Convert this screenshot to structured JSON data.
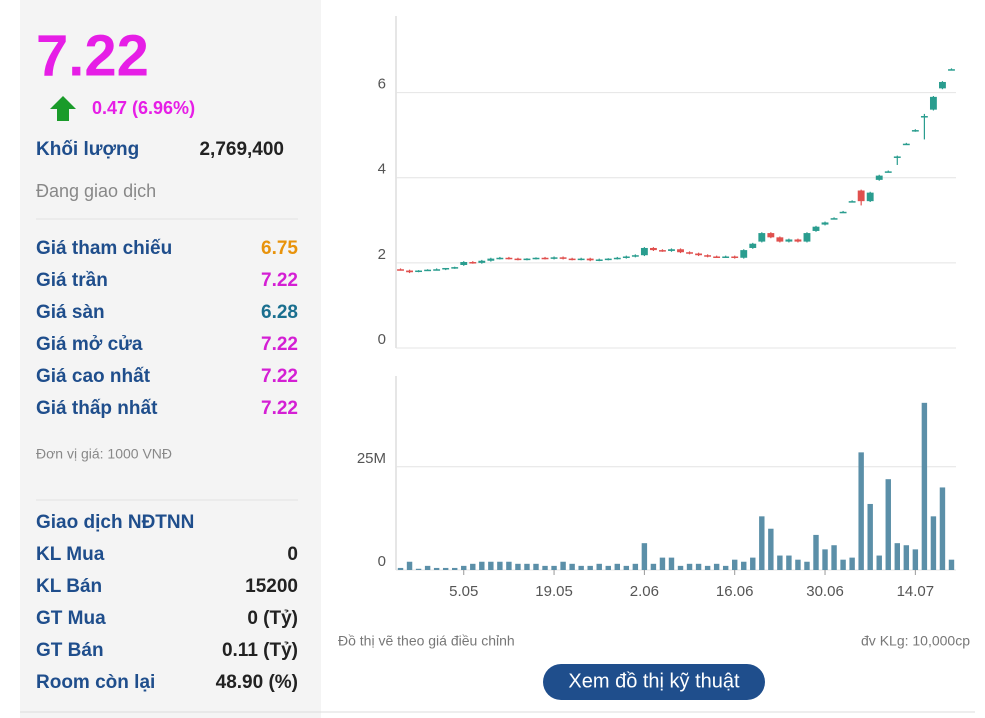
{
  "panel": {
    "price": "7.22",
    "change": "0.47 (6.96%)",
    "volume_label": "Khối lượng",
    "volume": "2,769,400",
    "status": "Đang giao dịch",
    "rows": [
      [
        "Giá tham chiếu",
        "6.75"
      ],
      [
        "Giá trần",
        "7.22"
      ],
      [
        "Giá sàn",
        "6.28"
      ],
      [
        "Giá mở cửa",
        "7.22"
      ],
      [
        "Giá cao nhất",
        "7.22"
      ],
      [
        "Giá thấp nhất",
        "7.22"
      ]
    ],
    "unit": "Đơn vị giá: 1000 VNĐ",
    "foreign_title": "Giao dịch NĐTNN",
    "foreign_rows": [
      [
        "KL Mua",
        "0"
      ],
      [
        "KL Bán",
        "15200"
      ],
      [
        "GT Mua",
        "0 (Tỷ)"
      ],
      [
        "GT Bán",
        "0.11 (Tỷ)"
      ],
      [
        "Room còn lại",
        "48.90 (%)"
      ]
    ]
  },
  "chart_data": [
    {
      "type": "candlestick",
      "up_color": "#2a9d8f",
      "down_color": "#e0504e",
      "ylim": [
        0,
        7.8
      ],
      "yticks": [
        0,
        2,
        4,
        6
      ],
      "grid": true,
      "open": [
        1.85,
        1.82,
        1.8,
        1.83,
        1.85,
        1.85,
        1.88,
        1.95,
        2.02,
        2,
        2.05,
        2.1,
        2.12,
        2.1,
        2.08,
        2.1,
        2.12,
        2.1,
        2.13,
        2.1,
        2.08,
        2.1,
        2.06,
        2.08,
        2.1,
        2.12,
        2.15,
        2.18,
        2.35,
        2.3,
        2.28,
        2.32,
        2.25,
        2.22,
        2.18,
        2.15,
        2.14,
        2.15,
        2.12,
        2.35,
        2.5,
        2.7,
        2.6,
        2.5,
        2.55,
        2.5,
        2.75,
        2.9,
        3.05,
        3.2,
        3.45,
        3.7,
        3.45,
        3.95,
        4.15,
        4.5,
        4.8,
        5.1,
        5.45,
        5.6,
        6.1,
        6.55
      ],
      "high": [
        1.87,
        1.84,
        1.83,
        1.85,
        1.87,
        1.88,
        1.91,
        2.04,
        2.04,
        2.07,
        2.12,
        2.14,
        2.14,
        2.12,
        2.11,
        2.13,
        2.14,
        2.15,
        2.15,
        2.12,
        2.12,
        2.12,
        2.1,
        2.11,
        2.14,
        2.17,
        2.2,
        2.37,
        2.37,
        2.32,
        2.34,
        2.34,
        2.27,
        2.24,
        2.2,
        2.17,
        2.17,
        2.17,
        2.32,
        2.47,
        2.72,
        2.72,
        2.62,
        2.57,
        2.57,
        2.72,
        2.87,
        2.97,
        3.07,
        3.22,
        3.47,
        3.72,
        3.67,
        4.07,
        4.17,
        4.52,
        4.82,
        5.14,
        5.5,
        5.92,
        6.27,
        6.57
      ],
      "low": [
        1.82,
        1.76,
        1.78,
        1.81,
        1.83,
        1.83,
        1.86,
        1.93,
        1.98,
        1.98,
        2.03,
        2.08,
        2.08,
        2.06,
        2.06,
        2.08,
        2.08,
        2.08,
        2.08,
        2.06,
        2.06,
        2.04,
        2.04,
        2.06,
        2.08,
        2.1,
        2.13,
        2.16,
        2.28,
        2.26,
        2.26,
        2.23,
        2.2,
        2.16,
        2.13,
        2.12,
        2.12,
        2.1,
        2.1,
        2.33,
        2.48,
        2.58,
        2.48,
        2.48,
        2.48,
        2.48,
        2.73,
        2.88,
        3.03,
        3.18,
        3.43,
        3.35,
        3.43,
        3.93,
        4.13,
        4.3,
        4.78,
        5.08,
        4.9,
        5.58,
        6.08,
        6.53
      ],
      "close": [
        1.82,
        1.78,
        1.82,
        1.84,
        1.85,
        1.88,
        1.9,
        2.02,
        2,
        2.05,
        2.1,
        2.12,
        2.1,
        2.08,
        2.1,
        2.12,
        2.1,
        2.13,
        2.1,
        2.08,
        2.1,
        2.06,
        2.08,
        2.1,
        2.12,
        2.15,
        2.18,
        2.35,
        2.3,
        2.28,
        2.32,
        2.25,
        2.22,
        2.18,
        2.15,
        2.14,
        2.15,
        2.12,
        2.3,
        2.45,
        2.7,
        2.6,
        2.5,
        2.55,
        2.5,
        2.7,
        2.85,
        2.95,
        3.05,
        3.2,
        3.45,
        3.45,
        3.65,
        4.05,
        4.15,
        4.5,
        4.8,
        5.12,
        5.45,
        5.9,
        6.25,
        6.55
      ],
      "note": "Đồ thị vẽ theo giá điều chỉnh"
    },
    {
      "type": "bar",
      "color": "#5b8fa8",
      "ylim": [
        0,
        47000000
      ],
      "yticks": [
        0,
        {
          "value": 25000000,
          "label": "25M"
        }
      ],
      "grid": true,
      "categories": [
        null,
        null,
        null,
        null,
        null,
        null,
        null,
        "5.05",
        null,
        null,
        null,
        null,
        null,
        null,
        null,
        null,
        null,
        "19.05",
        null,
        null,
        null,
        null,
        null,
        null,
        null,
        null,
        null,
        "2.06",
        null,
        null,
        null,
        null,
        null,
        null,
        null,
        null,
        null,
        "16.06",
        null,
        null,
        null,
        null,
        null,
        null,
        null,
        null,
        null,
        "30.06",
        null,
        null,
        null,
        null,
        null,
        null,
        null,
        null,
        null,
        "14.07",
        null,
        null,
        null,
        null
      ],
      "values": [
        500000,
        2000000,
        300000,
        1000000,
        500000,
        500000,
        500000,
        1000000,
        1500000,
        2000000,
        2000000,
        2000000,
        2000000,
        1500000,
        1500000,
        1500000,
        1000000,
        1000000,
        2000000,
        1500000,
        1000000,
        1000000,
        1500000,
        1000000,
        1500000,
        1000000,
        1500000,
        6500000,
        1500000,
        3000000,
        3000000,
        1000000,
        1500000,
        1500000,
        1000000,
        1500000,
        1000000,
        2500000,
        2000000,
        3000000,
        13000000,
        10000000,
        3500000,
        3500000,
        2500000,
        2000000,
        8500000,
        5000000,
        6000000,
        2500000,
        3000000,
        28500000,
        16000000,
        3500000,
        22000000,
        6500000,
        6000000,
        5000000,
        40500000,
        13000000,
        20000000,
        2500000
      ],
      "note": "đv KLg: 10,000cp"
    }
  ],
  "button": "Xem đồ thị kỹ thuật"
}
